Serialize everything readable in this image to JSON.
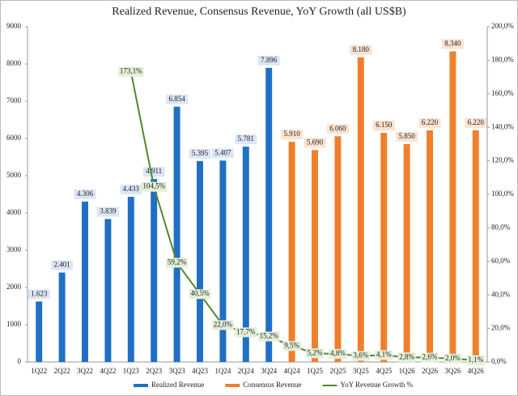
{
  "chart_data": {
    "type": "bar",
    "title": "Realized Revenue, Consensus Revenue, YoY Growth (all US$B)",
    "categories": [
      "1Q22",
      "2Q22",
      "3Q22",
      "4Q22",
      "1Q23",
      "2Q23",
      "3Q23",
      "4Q23",
      "1Q24",
      "2Q24",
      "3Q24",
      "4Q24",
      "1Q25",
      "2Q25",
      "3Q25",
      "4Q25",
      "1Q26",
      "2Q26",
      "3Q26",
      "4Q26"
    ],
    "series": [
      {
        "name": "Realized Revenue",
        "type": "bar",
        "color": "#1f6fc5",
        "values": [
          1623,
          2401,
          4306,
          3839,
          4433,
          4911,
          6854,
          5395,
          5407,
          5781,
          7896,
          null,
          null,
          null,
          null,
          null,
          null,
          null,
          null,
          null
        ],
        "value_labels": [
          "1.623",
          "2.401",
          "4.306",
          "3.839",
          "4.433",
          "4.911",
          "6.854",
          "5.395",
          "5.407",
          "5.781",
          "7.896",
          null,
          null,
          null,
          null,
          null,
          null,
          null,
          null,
          null
        ]
      },
      {
        "name": "Consensus Revenue",
        "type": "bar",
        "color": "#f07f2a",
        "values": [
          null,
          null,
          null,
          null,
          null,
          null,
          null,
          null,
          null,
          null,
          null,
          5910,
          5690,
          6060,
          8180,
          6150,
          5850,
          6220,
          8340,
          6220
        ],
        "value_labels": [
          null,
          null,
          null,
          null,
          null,
          null,
          null,
          null,
          null,
          null,
          null,
          "5.910",
          "5.690",
          "6.060",
          "8.180",
          "6.150",
          "5.850",
          "6.220",
          "8.340",
          "6.220"
        ]
      },
      {
        "name": "YoY Revenue Growth %",
        "type": "line",
        "axis": "y2",
        "color": "#4e8a2a",
        "values": [
          null,
          null,
          null,
          null,
          173.1,
          104.5,
          59.2,
          40.5,
          22.0,
          17.7,
          15.2,
          9.5,
          5.2,
          4.8,
          3.6,
          4.1,
          2.8,
          2.6,
          2.0,
          1.1
        ],
        "value_labels": [
          null,
          null,
          null,
          null,
          "173,1%",
          "104,5%",
          "59,2%",
          "40,5%",
          "22,0%",
          "17,7%",
          "15,2%",
          "9,5%",
          "5,2%",
          "4,8%",
          "3,6%",
          "4,1%",
          "2,8%",
          "2,6%",
          "2,0%",
          "1,1%"
        ]
      }
    ],
    "ylim": [
      0,
      9000
    ],
    "yticks": [
      0,
      1000,
      2000,
      3000,
      4000,
      5000,
      6000,
      7000,
      8000,
      9000
    ],
    "y2lim": [
      0,
      200
    ],
    "y2ticks": [
      {
        "value": 0,
        "label": "0,0%"
      },
      {
        "value": 20,
        "label": "20,0%"
      },
      {
        "value": 40,
        "label": "40,0%"
      },
      {
        "value": 60,
        "label": "60,0%"
      },
      {
        "value": 80,
        "label": "80,0%"
      },
      {
        "value": 100,
        "label": "100,0%"
      },
      {
        "value": 120,
        "label": "120,0%"
      },
      {
        "value": 140,
        "label": "140,0%"
      },
      {
        "value": 160,
        "label": "160,0%"
      },
      {
        "value": 180,
        "label": "180,0%"
      },
      {
        "value": 200,
        "label": "200,0%"
      }
    ],
    "grid": false,
    "legend": "bottom"
  }
}
